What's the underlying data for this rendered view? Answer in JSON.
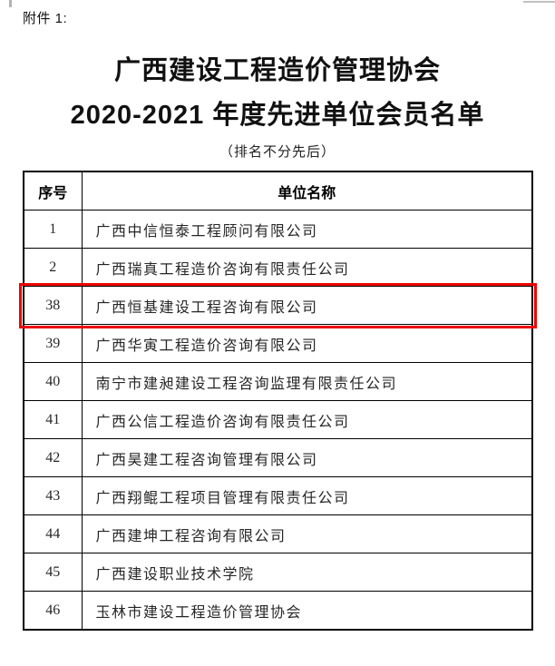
{
  "page": {
    "attachment_label": "附件 1:"
  },
  "header": {
    "title_line1": "广西建设工程造价管理协会",
    "title_line2": "2020-2021 年度先进单位会员名单",
    "subtitle": "（排名不分先后）"
  },
  "table": {
    "columns": [
      "序号",
      "单位名称"
    ],
    "rows": [
      {
        "no": "1",
        "name": "广西中信恒泰工程顾问有限公司",
        "highlighted": false
      },
      {
        "no": "2",
        "name": "广西瑞真工程造价咨询有限责任公司",
        "highlighted": false
      },
      {
        "no": "38",
        "name": "广西恒基建设工程咨询有限公司",
        "highlighted": true
      },
      {
        "no": "39",
        "name": "广西华寅工程造价咨询有限公司",
        "highlighted": false
      },
      {
        "no": "40",
        "name": "南宁市建昶建设工程咨询监理有限责任公司",
        "highlighted": false
      },
      {
        "no": "41",
        "name": "广西公信工程造价咨询有限责任公司",
        "highlighted": false
      },
      {
        "no": "42",
        "name": "广西昊建工程咨询管理有限公司",
        "highlighted": false
      },
      {
        "no": "43",
        "name": "广西翔鲲工程项目管理有限责任公司",
        "highlighted": false
      },
      {
        "no": "44",
        "name": "广西建坤工程咨询有限公司",
        "highlighted": false
      },
      {
        "no": "45",
        "name": "广西建设职业技术学院",
        "highlighted": false
      },
      {
        "no": "46",
        "name": "玉林市建设工程造价管理协会",
        "highlighted": false
      }
    ]
  },
  "colors": {
    "highlight_border": "#ec0000",
    "table_border": "#000000",
    "title_text": "#111111",
    "body_text": "#262626"
  }
}
